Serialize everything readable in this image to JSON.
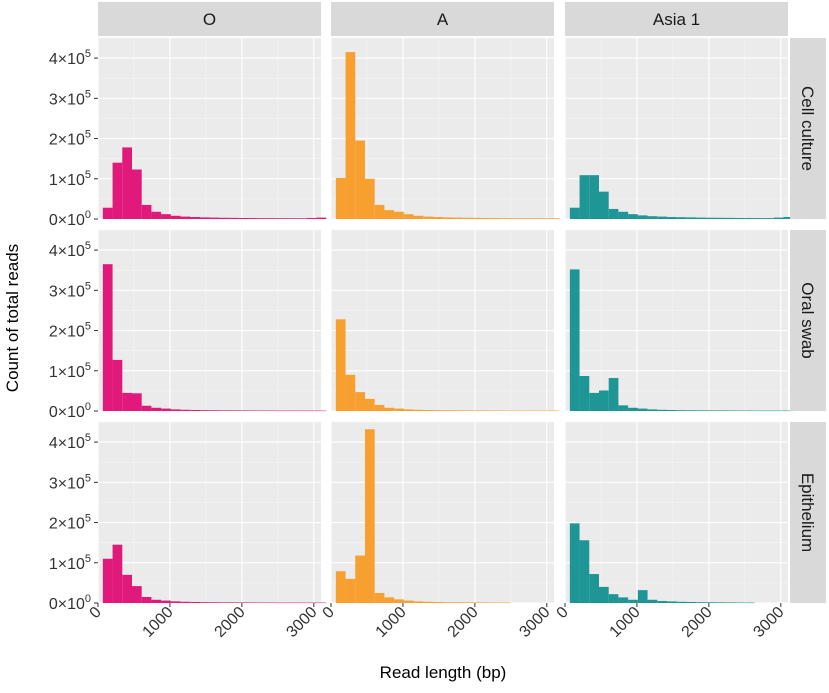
{
  "chart_data": {
    "type": "bar",
    "subtype": "faceted histogram",
    "xlabel": "Read length (bp)",
    "ylabel": "Count of total reads",
    "xlim": [
      0,
      3100
    ],
    "ylim": [
      0,
      450000
    ],
    "x_ticks": [
      0,
      1000,
      2000,
      3000
    ],
    "x_tick_labels": [
      "0",
      "1000",
      "2000",
      "3000"
    ],
    "y_ticks": [
      {
        "mantissa": "0",
        "exp": "0",
        "value": 0
      },
      {
        "mantissa": "1",
        "exp": "5",
        "value": 100000
      },
      {
        "mantissa": "2",
        "exp": "5",
        "value": 200000
      },
      {
        "mantissa": "3",
        "exp": "5",
        "value": 300000
      },
      {
        "mantissa": "4",
        "exp": "5",
        "value": 400000
      }
    ],
    "bin_width": 135,
    "bin_start": 67.5,
    "columns": [
      {
        "label": "O",
        "color": "#E0197A"
      },
      {
        "label": "A",
        "color": "#F7A030"
      },
      {
        "label": "Asia 1",
        "color": "#1E9696"
      }
    ],
    "rows": [
      {
        "label": "Cell culture"
      },
      {
        "label": "Oral swab"
      },
      {
        "label": "Epithelium"
      }
    ],
    "panels": [
      [
        {
          "values": [
            28000,
            140000,
            178000,
            123000,
            35000,
            18000,
            12000,
            8000,
            6000,
            5000,
            4000,
            3500,
            3000,
            2800,
            2500,
            2300,
            2100,
            2000,
            1900,
            1800,
            1800,
            2500,
            3500
          ]
        },
        {
          "values": [
            102000,
            415000,
            195000,
            100000,
            35000,
            22000,
            18000,
            12000,
            8000,
            6000,
            5000,
            4000,
            3500,
            3000,
            2800,
            2500,
            2300,
            2000,
            1900,
            1800,
            1700,
            1700,
            1700
          ]
        },
        {
          "values": [
            28000,
            109000,
            109000,
            68000,
            25000,
            18000,
            12000,
            9000,
            7000,
            6000,
            5000,
            4500,
            4000,
            3500,
            3200,
            3000,
            2800,
            2500,
            2400,
            2300,
            2200,
            3500,
            5000
          ]
        }
      ],
      [
        {
          "values": [
            365000,
            127000,
            45000,
            44000,
            13000,
            8000,
            6000,
            4000,
            3000,
            2500,
            2000,
            1800,
            1600,
            1500,
            1400,
            1300,
            1200,
            1100,
            1000,
            1000,
            1000,
            1000,
            1000
          ]
        },
        {
          "values": [
            228000,
            90000,
            47000,
            30000,
            15000,
            8000,
            6000,
            4000,
            3000,
            2500,
            2000,
            1800,
            1600,
            1500,
            1400,
            1300,
            1200,
            1100,
            1000,
            1000,
            1000,
            1000,
            1000
          ]
        },
        {
          "values": [
            352000,
            87000,
            45000,
            51000,
            82000,
            14000,
            8000,
            6000,
            4000,
            3000,
            2500,
            2000,
            1800,
            1600,
            1500,
            1400,
            1300,
            1200,
            1100,
            1000,
            1000,
            1000,
            1000
          ]
        }
      ],
      [
        {
          "values": [
            110000,
            145000,
            70000,
            42000,
            15000,
            8000,
            6000,
            4000,
            3000,
            2500,
            2000,
            1800,
            1600,
            1500,
            1400,
            1300,
            1200,
            1100,
            1000,
            1000,
            1000,
            1000,
            1000
          ]
        },
        {
          "values": [
            79000,
            60000,
            118000,
            432000,
            25000,
            14000,
            9000,
            6000,
            4000,
            3000,
            2500,
            2000,
            1800,
            1600,
            1500,
            1300,
            1100,
            1000,
            0,
            0,
            0,
            0,
            0
          ]
        },
        {
          "values": [
            198000,
            156000,
            72000,
            40000,
            22000,
            14000,
            8000,
            32000,
            8000,
            5000,
            4000,
            3000,
            2500,
            2000,
            1800,
            1600,
            1400,
            1200,
            1000,
            0,
            0,
            0,
            0
          ]
        }
      ]
    ]
  }
}
